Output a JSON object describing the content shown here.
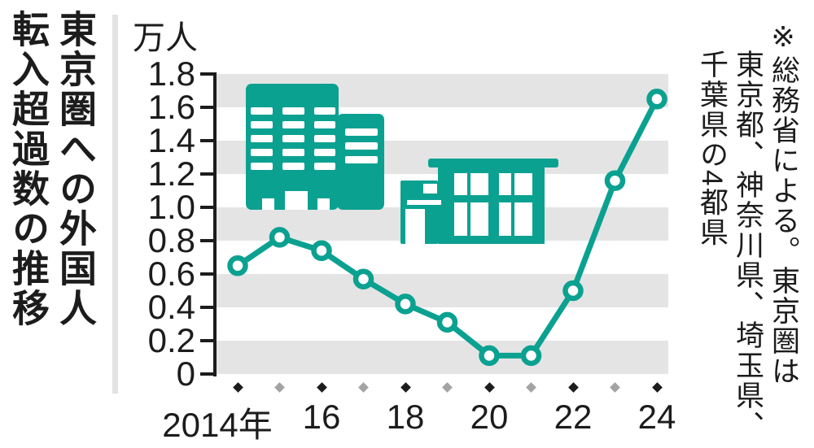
{
  "title": {
    "text": "東京圏への外国人転入超過数の推移",
    "lines": [
      "東京圏への外国人",
      "転入超過数の推移"
    ]
  },
  "note": {
    "text": "※総務省による。東京圏は東京都、神奈川県、埼玉県、千葉県の4都県",
    "lines": [
      "※総務省による。東京圏は",
      "東京都、神奈川県、埼玉県、",
      "千葉県の4都県"
    ]
  },
  "chart_data": {
    "type": "line",
    "title": "東京圏への外国人転入超過数の推移",
    "unit_label": "万人",
    "x": [
      2014,
      2015,
      2016,
      2017,
      2018,
      2019,
      2020,
      2021,
      2022,
      2023,
      2024
    ],
    "x_tick_labels": [
      "2014年",
      "16",
      "18",
      "20",
      "22",
      "24"
    ],
    "series": [
      {
        "name": "東京圏への外国人転入超過数",
        "values": [
          0.65,
          0.82,
          0.74,
          0.57,
          0.42,
          0.31,
          0.11,
          0.11,
          0.5,
          1.16,
          1.65
        ]
      }
    ],
    "ylim": [
      0,
      1.8
    ],
    "ytick_step": 0.2,
    "legend": "none",
    "grid": "alternating horizontal gray bands every 0.2",
    "decorations": [
      "office-building-icon",
      "house-icon"
    ],
    "colors": {
      "line": "#0ba191",
      "band": "#e4e4e4",
      "axis": "#1c1c1c",
      "diamond_even": "#1c1c1c",
      "diamond_odd": "#a3a3a3"
    }
  }
}
